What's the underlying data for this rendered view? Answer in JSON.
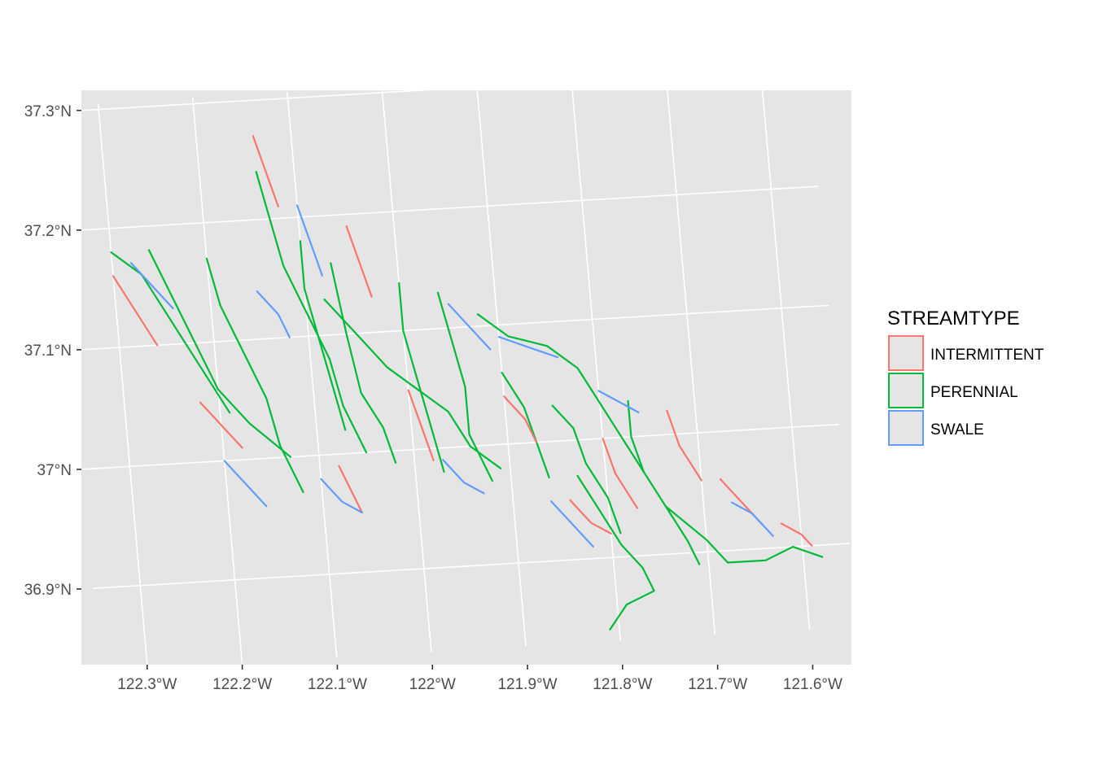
{
  "chart_data": {
    "type": "map",
    "xlabel": "",
    "ylabel": "",
    "x_ticks": [
      {
        "value": -122.3,
        "label": "122.3°W"
      },
      {
        "value": -122.2,
        "label": "122.2°W"
      },
      {
        "value": -122.1,
        "label": "122.1°W"
      },
      {
        "value": -122.0,
        "label": "122°W"
      },
      {
        "value": -121.9,
        "label": "121.9°W"
      },
      {
        "value": -121.8,
        "label": "121.8°W"
      },
      {
        "value": -121.7,
        "label": "121.7°W"
      },
      {
        "value": -121.6,
        "label": "121.6°W"
      }
    ],
    "y_ticks": [
      {
        "value": 37.3,
        "label": "37.3°N"
      },
      {
        "value": 37.2,
        "label": "37.2°N"
      },
      {
        "value": 37.1,
        "label": "37.1°N"
      },
      {
        "value": 37.0,
        "label": "37°N"
      },
      {
        "value": 36.9,
        "label": "36.9°N"
      }
    ],
    "xlim": [
      -122.35,
      -121.55
    ],
    "ylim": [
      36.83,
      37.305
    ],
    "grid": true,
    "panel_background": "#e5e5e5",
    "legend": {
      "title": "STREAMTYPE",
      "placement": "right",
      "entries": [
        {
          "label": "INTERMITTENT",
          "color": "#f8766d"
        },
        {
          "label": "PERENNIAL",
          "color": "#00ba38"
        },
        {
          "label": "SWALE",
          "color": "#619cff"
        }
      ]
    },
    "series": [
      {
        "name": "PERENNIAL",
        "color": "#00ba38",
        "lines": [
          [
            [
              -122.08,
              37.13
            ],
            [
              -122.05,
              37.1
            ],
            [
              -122.02,
              37.07
            ],
            [
              -121.99,
              37.05
            ],
            [
              -121.96,
              37.03
            ],
            [
              -121.94,
              37.0
            ],
            [
              -121.91,
              36.98
            ]
          ],
          [
            [
              -122.07,
              37.16
            ],
            [
              -122.06,
              37.1
            ],
            [
              -122.05,
              37.05
            ],
            [
              -122.03,
              37.02
            ],
            [
              -122.02,
              36.99
            ]
          ],
          [
            [
              -122.14,
              37.24
            ],
            [
              -122.13,
              37.2
            ],
            [
              -122.12,
              37.16
            ],
            [
              -122.1,
              37.12
            ],
            [
              -122.08,
              37.08
            ],
            [
              -122.07,
              37.04
            ],
            [
              -122.05,
              37.0
            ]
          ],
          [
            [
              -122.26,
              37.18
            ],
            [
              -122.24,
              37.14
            ],
            [
              -122.22,
              37.1
            ],
            [
              -122.2,
              37.06
            ],
            [
              -122.17,
              37.03
            ],
            [
              -122.13,
              37.0
            ]
          ],
          [
            [
              -122.2,
              37.17
            ],
            [
              -122.19,
              37.13
            ],
            [
              -122.17,
              37.09
            ],
            [
              -122.15,
              37.05
            ],
            [
              -122.14,
              37.01
            ],
            [
              -122.12,
              36.97
            ]
          ],
          [
            [
              -122.1,
              37.18
            ],
            [
              -122.1,
              37.14
            ],
            [
              -122.09,
              37.1
            ],
            [
              -122.08,
              37.06
            ],
            [
              -122.07,
              37.02
            ]
          ],
          [
            [
              -122.0,
              37.14
            ],
            [
              -122.0,
              37.1
            ],
            [
              -121.99,
              37.06
            ],
            [
              -121.98,
              37.02
            ],
            [
              -121.97,
              36.98
            ]
          ],
          [
            [
              -121.96,
              37.13
            ],
            [
              -121.95,
              37.09
            ],
            [
              -121.94,
              37.05
            ],
            [
              -121.94,
              37.01
            ],
            [
              -121.92,
              36.97
            ]
          ],
          [
            [
              -121.92,
              37.11
            ],
            [
              -121.89,
              37.09
            ],
            [
              -121.85,
              37.08
            ],
            [
              -121.82,
              37.06
            ],
            [
              -121.8,
              37.03
            ],
            [
              -121.78,
              37.0
            ],
            [
              -121.76,
              36.97
            ],
            [
              -121.74,
              36.94
            ],
            [
              -121.72,
              36.91
            ],
            [
              -121.71,
              36.89
            ]
          ],
          [
            [
              -121.83,
              36.97
            ],
            [
              -121.81,
              36.94
            ],
            [
              -121.79,
              36.91
            ],
            [
              -121.77,
              36.89
            ],
            [
              -121.76,
              36.87
            ],
            [
              -121.79,
              36.86
            ],
            [
              -121.81,
              36.84
            ]
          ],
          [
            [
              -121.74,
              36.94
            ],
            [
              -121.7,
              36.91
            ],
            [
              -121.68,
              36.89
            ],
            [
              -121.64,
              36.89
            ],
            [
              -121.61,
              36.9
            ],
            [
              -121.58,
              36.89
            ]
          ],
          [
            [
              -121.85,
              37.03
            ],
            [
              -121.83,
              37.01
            ],
            [
              -121.82,
              36.98
            ],
            [
              -121.8,
              36.95
            ],
            [
              -121.79,
              36.92
            ]
          ],
          [
            [
              -122.3,
              37.18
            ],
            [
              -122.27,
              37.16
            ],
            [
              -122.25,
              37.13
            ],
            [
              -122.23,
              37.1
            ],
            [
              -122.21,
              37.07
            ],
            [
              -122.19,
              37.04
            ]
          ],
          [
            [
              -121.9,
              37.06
            ],
            [
              -121.88,
              37.03
            ],
            [
              -121.87,
              37.0
            ],
            [
              -121.86,
              36.97
            ]
          ],
          [
            [
              -121.77,
              37.03
            ],
            [
              -121.77,
              37.0
            ],
            [
              -121.76,
              36.97
            ]
          ]
        ]
      },
      {
        "name": "INTERMITTENT",
        "color": "#f8766d",
        "lines": [
          [
            [
              -122.14,
              37.27
            ],
            [
              -122.13,
              37.24
            ],
            [
              -122.12,
              37.21
            ]
          ],
          [
            [
              -122.3,
              37.16
            ],
            [
              -122.28,
              37.13
            ],
            [
              -122.26,
              37.1
            ]
          ],
          [
            [
              -122.22,
              37.05
            ],
            [
              -122.2,
              37.03
            ],
            [
              -122.18,
              37.01
            ]
          ],
          [
            [
              -122.08,
              36.99
            ],
            [
              -122.07,
              36.97
            ],
            [
              -122.06,
              36.95
            ]
          ],
          [
            [
              -121.84,
              36.95
            ],
            [
              -121.82,
              36.93
            ],
            [
              -121.8,
              36.92
            ]
          ],
          [
            [
              -121.8,
              37.0
            ],
            [
              -121.79,
              36.97
            ],
            [
              -121.77,
              36.94
            ]
          ],
          [
            [
              -121.73,
              37.02
            ],
            [
              -121.72,
              36.99
            ],
            [
              -121.7,
              36.96
            ]
          ],
          [
            [
              -121.68,
              36.96
            ],
            [
              -121.66,
              36.94
            ],
            [
              -121.64,
              36.92
            ]
          ],
          [
            [
              -121.62,
              36.92
            ],
            [
              -121.6,
              36.91
            ],
            [
              -121.59,
              36.9
            ]
          ],
          [
            [
              -121.9,
              37.04
            ],
            [
              -121.88,
              37.02
            ],
            [
              -121.87,
              37.0
            ]
          ],
          [
            [
              -122.05,
              37.19
            ],
            [
              -122.04,
              37.16
            ],
            [
              -122.03,
              37.13
            ]
          ],
          [
            [
              -122.0,
              37.05
            ],
            [
              -121.99,
              37.02
            ],
            [
              -121.98,
              36.99
            ]
          ]
        ]
      },
      {
        "name": "SWALE",
        "color": "#619cff",
        "lines": [
          [
            [
              -122.28,
              37.17
            ],
            [
              -122.26,
              37.15
            ],
            [
              -122.24,
              37.13
            ]
          ],
          [
            [
              -122.2,
              37.0
            ],
            [
              -122.18,
              36.98
            ],
            [
              -122.16,
              36.96
            ]
          ],
          [
            [
              -122.1,
              36.98
            ],
            [
              -122.08,
              36.96
            ],
            [
              -122.06,
              36.95
            ]
          ],
          [
            [
              -121.97,
              36.99
            ],
            [
              -121.95,
              36.97
            ],
            [
              -121.93,
              36.96
            ]
          ],
          [
            [
              -121.9,
              37.09
            ],
            [
              -121.87,
              37.08
            ],
            [
              -121.84,
              37.07
            ]
          ],
          [
            [
              -121.8,
              37.04
            ],
            [
              -121.78,
              37.03
            ],
            [
              -121.76,
              37.02
            ]
          ],
          [
            [
              -121.67,
              36.94
            ],
            [
              -121.65,
              36.93
            ],
            [
              -121.63,
              36.91
            ]
          ],
          [
            [
              -122.1,
              37.21
            ],
            [
              -122.09,
              37.18
            ],
            [
              -122.08,
              37.15
            ]
          ],
          [
            [
              -122.15,
              37.14
            ],
            [
              -122.13,
              37.12
            ],
            [
              -122.12,
              37.1
            ]
          ],
          [
            [
              -121.86,
              36.95
            ],
            [
              -121.84,
              36.93
            ],
            [
              -121.82,
              36.91
            ]
          ],
          [
            [
              -121.95,
              37.12
            ],
            [
              -121.93,
              37.1
            ],
            [
              -121.91,
              37.08
            ]
          ]
        ]
      }
    ]
  }
}
